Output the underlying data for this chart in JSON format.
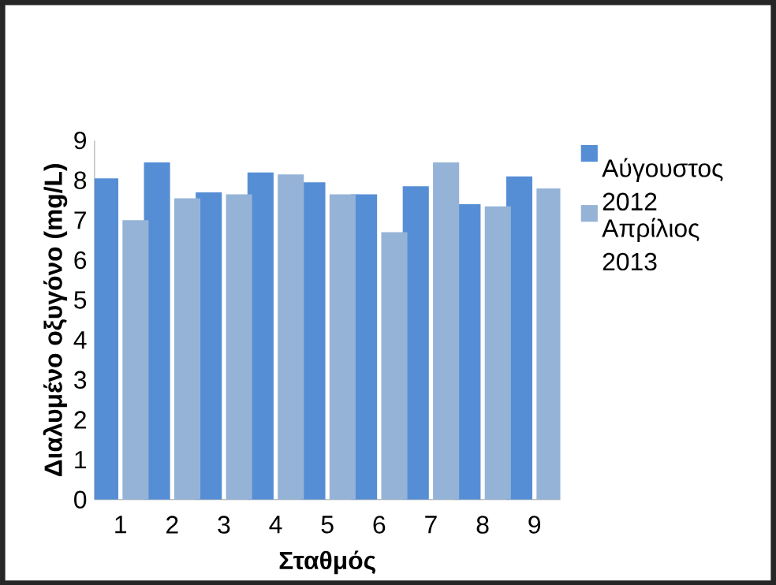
{
  "chart_data": {
    "type": "bar",
    "xlabel": "Σταθμός",
    "ylabel": "Διαλυμένο οξυγόνο (mg/L)",
    "categories": [
      "1",
      "2",
      "3",
      "4",
      "5",
      "6",
      "7",
      "8",
      "9"
    ],
    "series": [
      {
        "name": "Αύγουστος 2012",
        "color": "#558ed5",
        "values": [
          8.05,
          8.45,
          7.7,
          8.2,
          7.95,
          7.65,
          7.85,
          7.4,
          8.1
        ]
      },
      {
        "name": "Απρίλιος 2013",
        "color": "#95b3d7",
        "values": [
          7.0,
          7.55,
          7.65,
          8.15,
          7.65,
          6.7,
          8.45,
          7.35,
          7.8
        ]
      }
    ],
    "ylim": [
      0,
      9
    ],
    "yticks": [
      0,
      1,
      2,
      3,
      4,
      5,
      6,
      7,
      8,
      9
    ],
    "grid": false,
    "legend": "top right"
  }
}
